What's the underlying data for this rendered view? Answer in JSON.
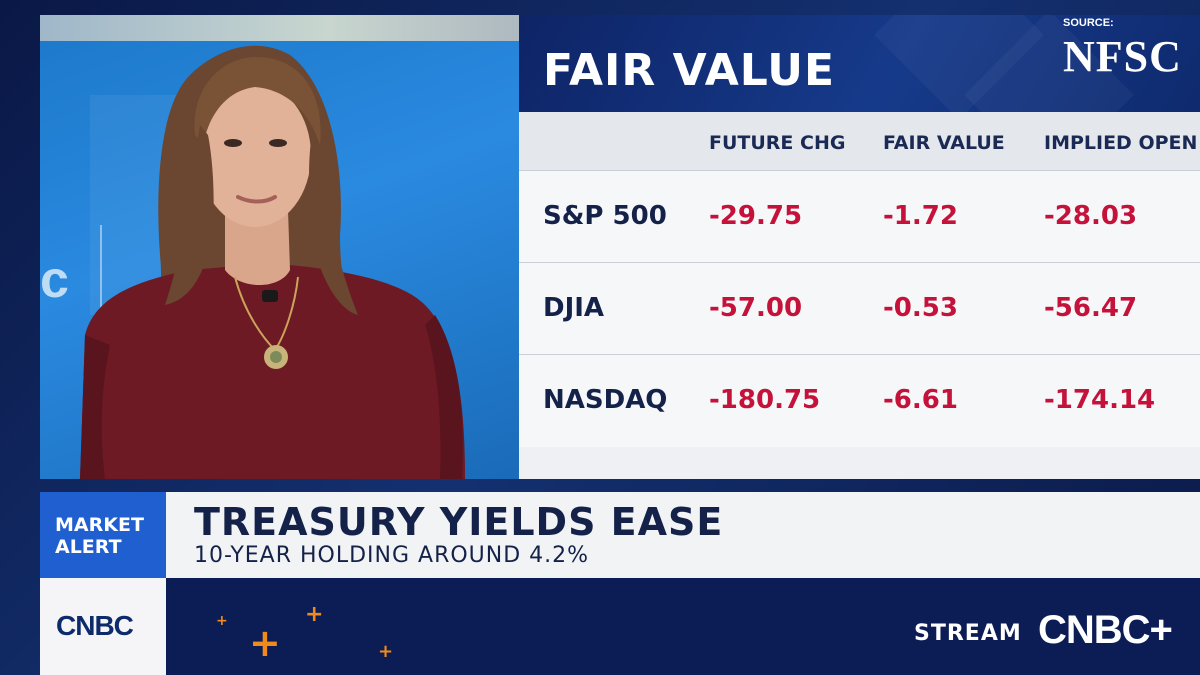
{
  "panel": {
    "title": "FAIR VALUE",
    "source_label": "SOURCE:",
    "source_name": "NFSC"
  },
  "table": {
    "columns": [
      "FUTURE CHG",
      "FAIR VALUE",
      "IMPLIED OPEN"
    ],
    "rows": [
      {
        "name": "S&P 500",
        "future_chg": "-29.75",
        "fair_value": "-1.72",
        "implied_open": "-28.03"
      },
      {
        "name": "DJIA",
        "future_chg": "-57.00",
        "fair_value": "-0.53",
        "implied_open": "-56.47"
      },
      {
        "name": "NASDAQ",
        "future_chg": "-180.75",
        "fair_value": "-6.61",
        "implied_open": "-174.14"
      }
    ]
  },
  "alert": {
    "tag_line1": "MARKET",
    "tag_line2": "ALERT",
    "headline": "TREASURY YIELDS EASE",
    "subhead": "10-YEAR HOLDING AROUND 4.2%"
  },
  "branding": {
    "network_logo": "CNBC",
    "stream_label": "STREAM",
    "stream_logo": "CNBC+"
  },
  "colors": {
    "negative": "#c4123a",
    "navy": "#0c1d55",
    "alert_blue": "#1f5fd0",
    "accent_orange": "#f08a1c"
  },
  "video": {
    "studio_mark": "c"
  }
}
